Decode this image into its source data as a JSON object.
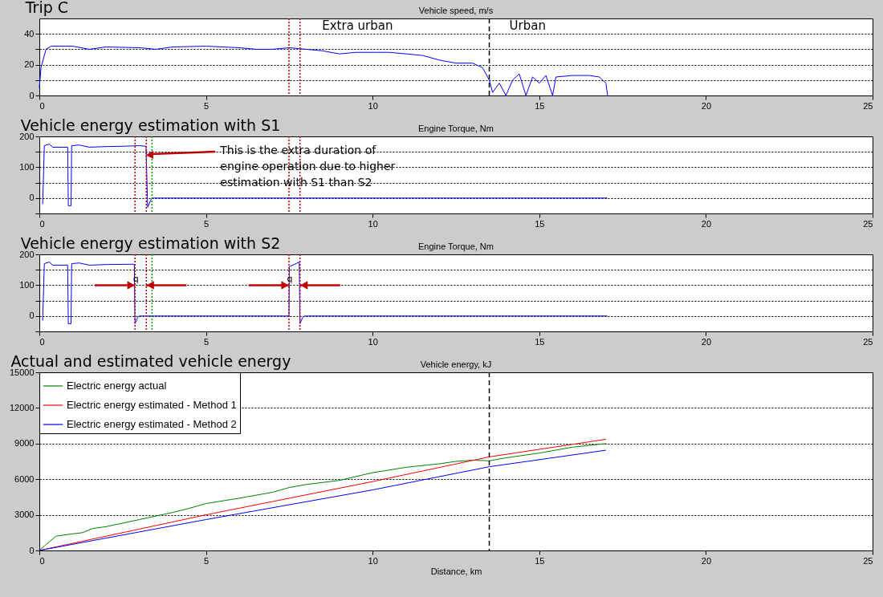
{
  "chart_data": [
    {
      "type": "line",
      "title": "Trip C",
      "subtitle": "Vehicle speed, m/s",
      "xlim": [
        0,
        25
      ],
      "xticks": [
        0,
        5,
        10,
        15,
        20,
        25
      ],
      "ylim": [
        0,
        50
      ],
      "yticks": [
        0,
        {
          "value": 10,
          "label": null
        },
        20,
        {
          "value": 30,
          "label": null
        },
        40
      ],
      "grid": "y",
      "line_style": "solid",
      "series": [
        {
          "color": "#0000ff",
          "x": [
            0,
            0.05,
            0.2,
            0.35,
            1,
            1.5,
            2,
            3,
            3.5,
            4,
            5,
            6,
            6.5,
            7,
            7.5,
            8,
            8.5,
            9,
            9.5,
            10,
            10.5,
            11,
            11.5,
            12,
            12.5,
            13,
            13.3,
            13.5,
            13.6,
            13.8,
            14,
            14.2,
            14.4,
            14.6,
            14.8,
            15,
            15.2,
            15.4,
            15.5,
            16,
            16.5,
            16.8,
            17,
            17.05
          ],
          "values": [
            5,
            18,
            30,
            32,
            32,
            30,
            31.5,
            31,
            30,
            31.5,
            32,
            31,
            30,
            30,
            31,
            30,
            29,
            27,
            28,
            28,
            28,
            27,
            26,
            23,
            21,
            21,
            18,
            10,
            2,
            8,
            0,
            10,
            14,
            0,
            12,
            8,
            13,
            0,
            12,
            13,
            13,
            12,
            8,
            0
          ]
        }
      ],
      "ref_lines": [
        {
          "axis": "x",
          "value": 13.5,
          "color": "#000000",
          "line_style": "dashed"
        },
        {
          "axis": "x",
          "value": 7.49,
          "color": "#c00000",
          "line_style": "dotted"
        },
        {
          "axis": "x",
          "value": 7.82,
          "color": "#c00000",
          "line_style": "dotted"
        }
      ],
      "annotations": [
        "Extra urban",
        "Urban"
      ]
    },
    {
      "type": "line",
      "title": "Vehicle energy estimation with S1",
      "subtitle": "Engine Torque, Nm",
      "xlim": [
        0,
        25
      ],
      "xticks": [
        0,
        5,
        10,
        15,
        20,
        25
      ],
      "ylim": [
        -50,
        200
      ],
      "yticks": [
        {
          "value": -50,
          "label": null
        },
        0,
        {
          "value": 50,
          "label": null
        },
        100,
        {
          "value": 150,
          "label": null
        },
        200
      ],
      "grid": "y",
      "line_style": "solid",
      "series": [
        {
          "color": "#0000ff",
          "x": [
            0.1,
            0.15,
            0.3,
            0.4,
            0.85,
            0.87,
            0.95,
            0.97,
            1.2,
            1.5,
            2,
            2.5,
            3,
            3.2,
            3.25,
            3.35,
            3.4,
            17.05
          ],
          "values": [
            -20,
            170,
            175,
            165,
            165,
            -25,
            -25,
            170,
            172,
            165,
            167,
            168,
            170,
            168,
            -30,
            -5,
            0,
            0
          ]
        }
      ],
      "ref_lines": [
        {
          "axis": "x",
          "value": 2.87,
          "color": "#c00000",
          "line_style": "dotted"
        },
        {
          "axis": "x",
          "value": 3.21,
          "color": "#c00000",
          "line_style": "dotted"
        },
        {
          "axis": "x",
          "value": 3.38,
          "color": "#00a000",
          "line_style": "dotted"
        },
        {
          "axis": "x",
          "value": 7.49,
          "color": "#c00000",
          "line_style": "dotted"
        },
        {
          "axis": "x",
          "value": 7.82,
          "color": "#c00000",
          "line_style": "dotted"
        }
      ],
      "annotations": [
        {
          "text": "This is the extra duration of engine operation due to higher estimation with S1 than S2",
          "x": 3.21,
          "y": 140
        }
      ]
    },
    {
      "type": "line",
      "title": "Vehicle energy estimation with S2",
      "subtitle": "Engine Torque, Nm",
      "xlim": [
        0,
        25
      ],
      "xticks": [
        0,
        5,
        10,
        15,
        20,
        25
      ],
      "ylim": [
        -50,
        200
      ],
      "yticks": [
        {
          "value": -50,
          "label": null
        },
        0,
        {
          "value": 50,
          "label": null
        },
        100,
        {
          "value": 150,
          "label": null
        },
        200
      ],
      "grid": "y",
      "line_style": "solid",
      "series": [
        {
          "color": "#0000ff",
          "x": [
            0.1,
            0.15,
            0.3,
            0.4,
            0.85,
            0.87,
            0.95,
            0.97,
            1.2,
            1.5,
            2,
            2.85,
            2.87,
            2.95,
            3,
            7.49,
            7.5,
            7.8,
            7.82,
            7.9,
            7.95,
            17.05
          ],
          "values": [
            -15,
            170,
            175,
            165,
            165,
            -25,
            -25,
            170,
            172,
            165,
            167,
            168,
            -25,
            -5,
            0,
            0,
            160,
            175,
            -25,
            -5,
            0,
            0
          ]
        }
      ],
      "ref_lines": [
        {
          "axis": "x",
          "value": 2.87,
          "color": "#c00000",
          "line_style": "dotted"
        },
        {
          "axis": "x",
          "value": 3.21,
          "color": "#c00000",
          "line_style": "dotted"
        },
        {
          "axis": "x",
          "value": 3.38,
          "color": "#00a000",
          "line_style": "dotted"
        },
        {
          "axis": "x",
          "value": 7.49,
          "color": "#c00000",
          "line_style": "dotted"
        },
        {
          "axis": "x",
          "value": 7.82,
          "color": "#c00000",
          "line_style": "dotted"
        }
      ],
      "annotations": [
        "q",
        "q"
      ]
    },
    {
      "type": "line",
      "title": "Actual and estimated vehicle energy",
      "subtitle": "Vehicle energy, kJ",
      "xlabel": "Distance, km",
      "xlim": [
        0,
        25
      ],
      "xticks": [
        0,
        5,
        10,
        15,
        20,
        25
      ],
      "ylim": [
        0,
        15000
      ],
      "yticks": [
        0,
        3000,
        6000,
        9000,
        12000,
        15000
      ],
      "grid": "y",
      "legend": "top left",
      "line_style": "solid",
      "series": [
        {
          "name": "Electric energy actual",
          "color": "#008000",
          "x": [
            0,
            0.2,
            0.5,
            1,
            1.3,
            1.6,
            2,
            3,
            3.5,
            4,
            4.5,
            5,
            6,
            7,
            7.5,
            8,
            9,
            10,
            11,
            12,
            12.5,
            13,
            13.5,
            14,
            15,
            16,
            17
          ],
          "values": [
            0,
            500,
            1200,
            1400,
            1500,
            1850,
            2000,
            2600,
            2900,
            3200,
            3550,
            3950,
            4400,
            4900,
            5300,
            5550,
            5900,
            6550,
            7000,
            7300,
            7500,
            7600,
            7550,
            7800,
            8200,
            8700,
            9000
          ]
        },
        {
          "name": "Electric energy estimated - Method 1",
          "color": "#ff0000",
          "x": [
            0,
            5,
            10,
            13.5,
            17
          ],
          "values": [
            0,
            3000,
            5800,
            7880,
            9360
          ]
        },
        {
          "name": "Electric energy estimated - Method 2",
          "color": "#0000ff",
          "x": [
            0,
            5,
            10,
            13.5,
            17
          ],
          "values": [
            0,
            2600,
            5100,
            7050,
            8440
          ]
        }
      ],
      "ref_lines": [
        {
          "axis": "x",
          "value": 13.5,
          "color": "#000000",
          "line_style": "dashed"
        }
      ]
    }
  ]
}
